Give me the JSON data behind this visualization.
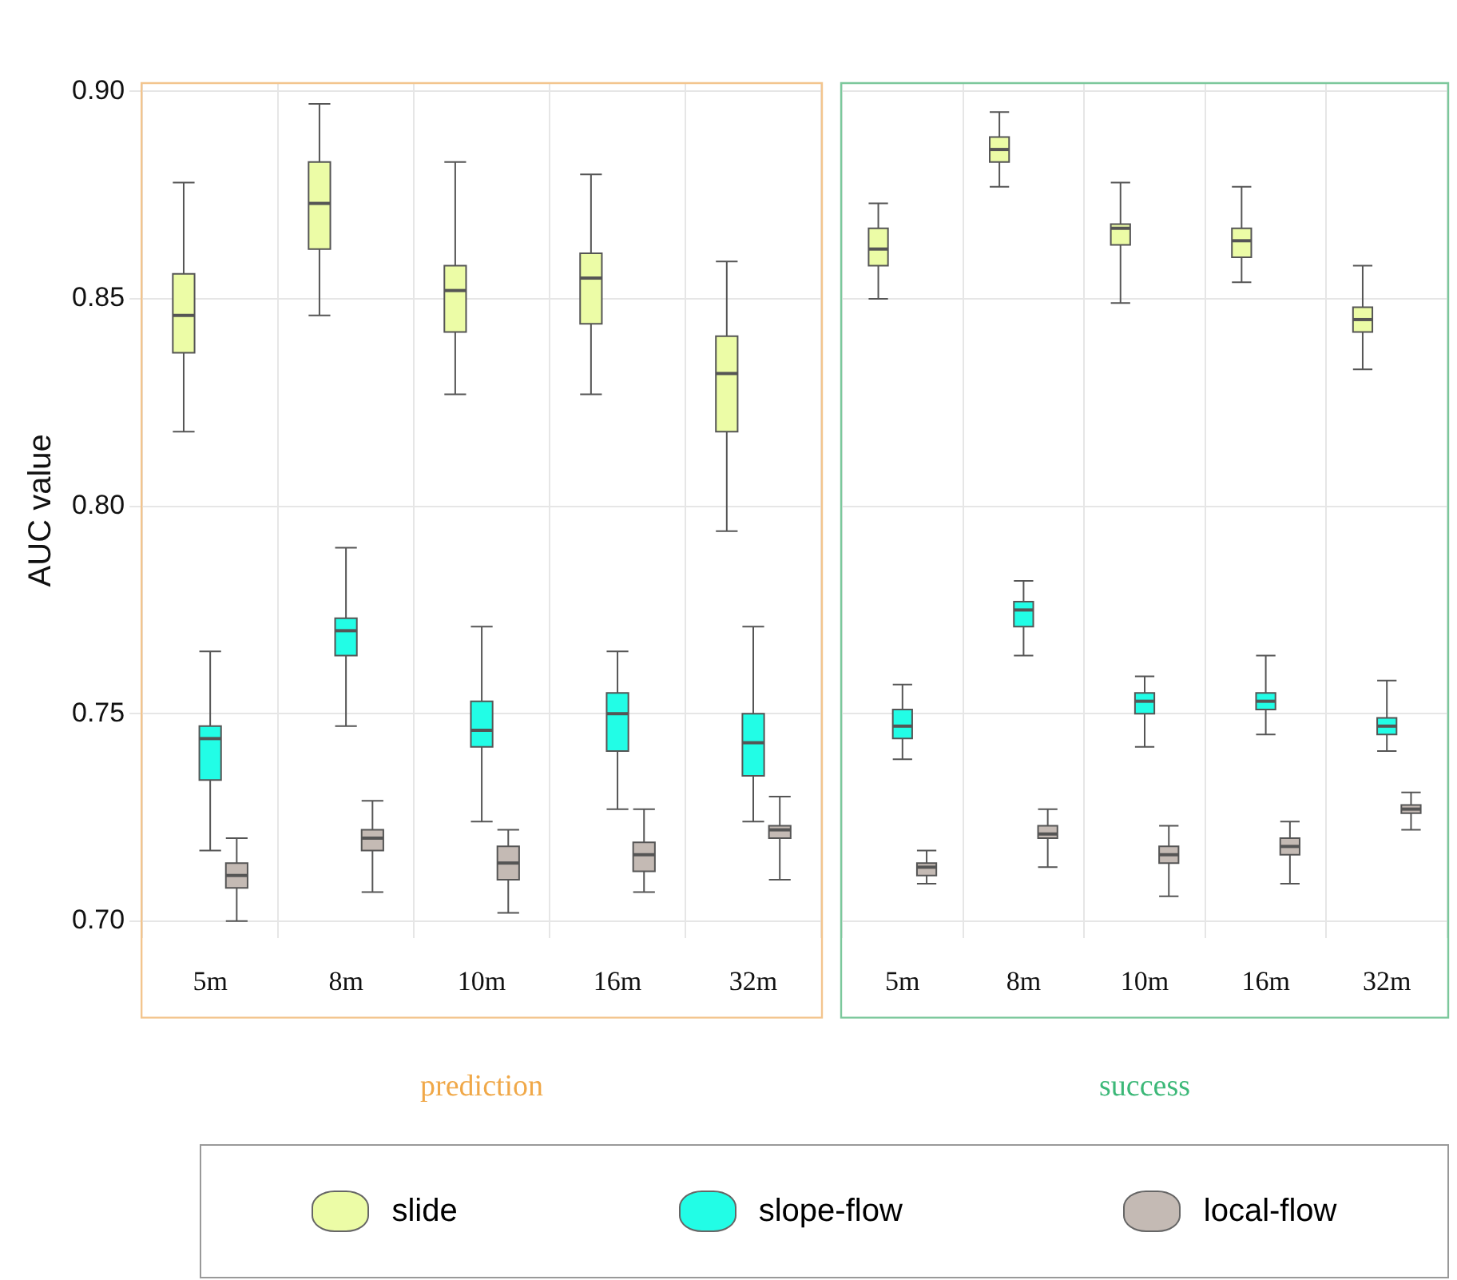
{
  "chart_data": [
    {
      "type": "box",
      "xlabel": "prediction",
      "ylabel": "AUC value",
      "categories": [
        "5m",
        "8m",
        "10m",
        "16m",
        "32m"
      ],
      "ylim": [
        0.696,
        0.902
      ],
      "yticks": [
        {
          "value": 0.7,
          "label": "0.70"
        },
        {
          "value": 0.75,
          "label": "0.75"
        },
        {
          "value": 0.8,
          "label": "0.80"
        },
        {
          "value": 0.85,
          "label": "0.85"
        },
        {
          "value": 0.9,
          "label": "0.90"
        }
      ],
      "grid": true,
      "legend": "bottom",
      "series": [
        {
          "name": "slide",
          "color": "#ecfca6",
          "boxes": [
            {
              "low": 0.818,
              "q1": 0.837,
              "median": 0.846,
              "q3": 0.856,
              "high": 0.878
            },
            {
              "low": 0.846,
              "q1": 0.862,
              "median": 0.873,
              "q3": 0.883,
              "high": 0.897
            },
            {
              "low": 0.827,
              "q1": 0.842,
              "median": 0.852,
              "q3": 0.858,
              "high": 0.883
            },
            {
              "low": 0.827,
              "q1": 0.844,
              "median": 0.855,
              "q3": 0.861,
              "high": 0.88
            },
            {
              "low": 0.794,
              "q1": 0.818,
              "median": 0.832,
              "q3": 0.841,
              "high": 0.859
            }
          ]
        },
        {
          "name": "slope-flow",
          "color": "#22fde6",
          "boxes": [
            {
              "low": 0.717,
              "q1": 0.734,
              "median": 0.744,
              "q3": 0.747,
              "high": 0.765
            },
            {
              "low": 0.747,
              "q1": 0.764,
              "median": 0.77,
              "q3": 0.773,
              "high": 0.79
            },
            {
              "low": 0.724,
              "q1": 0.742,
              "median": 0.746,
              "q3": 0.753,
              "high": 0.771
            },
            {
              "low": 0.727,
              "q1": 0.741,
              "median": 0.75,
              "q3": 0.755,
              "high": 0.765
            },
            {
              "low": 0.724,
              "q1": 0.735,
              "median": 0.743,
              "q3": 0.75,
              "high": 0.771
            }
          ]
        },
        {
          "name": "local-flow",
          "color": "#c4bab4",
          "boxes": [
            {
              "low": 0.7,
              "q1": 0.708,
              "median": 0.711,
              "q3": 0.714,
              "high": 0.72
            },
            {
              "low": 0.707,
              "q1": 0.717,
              "median": 0.72,
              "q3": 0.722,
              "high": 0.729
            },
            {
              "low": 0.702,
              "q1": 0.71,
              "median": 0.714,
              "q3": 0.718,
              "high": 0.722
            },
            {
              "low": 0.707,
              "q1": 0.712,
              "median": 0.716,
              "q3": 0.719,
              "high": 0.727
            },
            {
              "low": 0.71,
              "q1": 0.72,
              "median": 0.722,
              "q3": 0.723,
              "high": 0.73
            }
          ]
        }
      ]
    },
    {
      "type": "box",
      "xlabel": "success",
      "categories": [
        "5m",
        "8m",
        "10m",
        "16m",
        "32m"
      ],
      "ylim": [
        0.696,
        0.902
      ],
      "yticks": [
        0.7,
        0.75,
        0.8,
        0.85,
        0.9
      ],
      "tick_labels": "x",
      "grid": true,
      "series": [
        {
          "color": "#ecfca6",
          "boxes": [
            {
              "low": 0.85,
              "q1": 0.858,
              "median": 0.862,
              "q3": 0.867,
              "high": 0.873
            },
            {
              "low": 0.877,
              "q1": 0.883,
              "median": 0.886,
              "q3": 0.889,
              "high": 0.895
            },
            {
              "low": 0.849,
              "q1": 0.863,
              "median": 0.867,
              "q3": 0.868,
              "high": 0.878
            },
            {
              "low": 0.854,
              "q1": 0.86,
              "median": 0.864,
              "q3": 0.867,
              "high": 0.877
            },
            {
              "low": 0.833,
              "q1": 0.842,
              "median": 0.845,
              "q3": 0.848,
              "high": 0.858
            }
          ]
        },
        {
          "color": "#22fde6",
          "boxes": [
            {
              "low": 0.739,
              "q1": 0.744,
              "median": 0.747,
              "q3": 0.751,
              "high": 0.757
            },
            {
              "low": 0.764,
              "q1": 0.771,
              "median": 0.775,
              "q3": 0.777,
              "high": 0.782
            },
            {
              "low": 0.742,
              "q1": 0.75,
              "median": 0.753,
              "q3": 0.755,
              "high": 0.759
            },
            {
              "low": 0.745,
              "q1": 0.751,
              "median": 0.753,
              "q3": 0.755,
              "high": 0.764
            },
            {
              "low": 0.741,
              "q1": 0.745,
              "median": 0.747,
              "q3": 0.749,
              "high": 0.758
            }
          ]
        },
        {
          "color": "#c4bab4",
          "boxes": [
            {
              "low": 0.709,
              "q1": 0.711,
              "median": 0.713,
              "q3": 0.714,
              "high": 0.717
            },
            {
              "low": 0.713,
              "q1": 0.72,
              "median": 0.721,
              "q3": 0.723,
              "high": 0.727
            },
            {
              "low": 0.706,
              "q1": 0.714,
              "median": 0.716,
              "q3": 0.718,
              "high": 0.723
            },
            {
              "low": 0.709,
              "q1": 0.716,
              "median": 0.718,
              "q3": 0.72,
              "high": 0.724
            },
            {
              "low": 0.722,
              "q1": 0.726,
              "median": 0.727,
              "q3": 0.728,
              "high": 0.731
            }
          ]
        }
      ]
    }
  ]
}
